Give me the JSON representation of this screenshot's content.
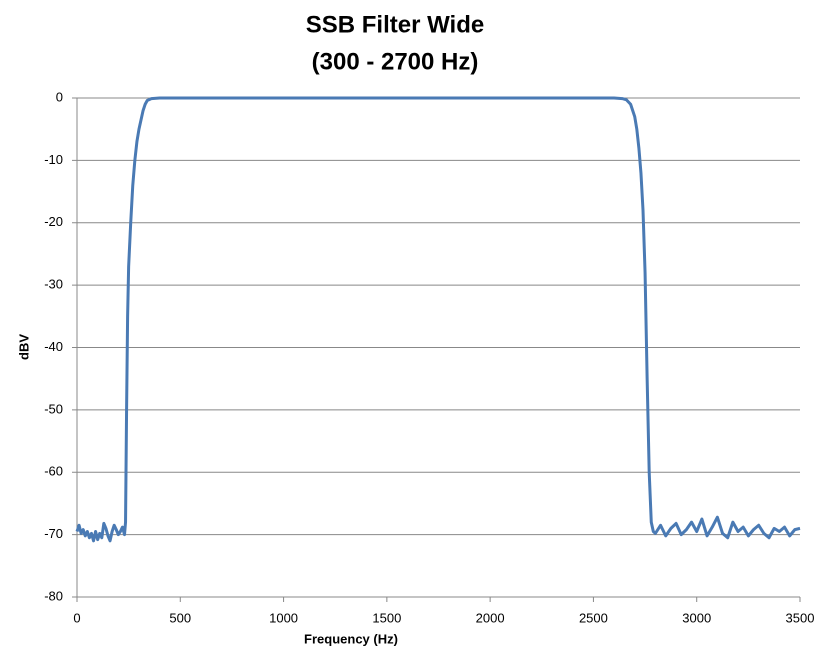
{
  "chart_data": {
    "type": "line",
    "title": [
      "SSB Filter Wide",
      "(300 - 2700 Hz)"
    ],
    "x_label": "Frequency (Hz)",
    "y_label": "dBV",
    "xlim": [
      0,
      3500
    ],
    "xticks": [
      0,
      500,
      1000,
      1500,
      2000,
      2500,
      3000,
      3500
    ],
    "ylim": [
      -80,
      0
    ],
    "yticks": [
      0,
      -10,
      -20,
      -30,
      -40,
      -50,
      -60,
      -70,
      -80
    ],
    "grid": true,
    "series": [
      {
        "color": "#4a7ab4",
        "x": [
          0,
          10,
          20,
          30,
          40,
          50,
          60,
          70,
          80,
          90,
          100,
          110,
          120,
          130,
          140,
          150,
          160,
          170,
          180,
          190,
          200,
          210,
          220,
          230,
          235,
          240,
          245,
          250,
          260,
          270,
          280,
          290,
          300,
          310,
          320,
          330,
          340,
          360,
          400,
          1000,
          1500,
          2000,
          2600,
          2640,
          2660,
          2680,
          2700,
          2710,
          2720,
          2730,
          2740,
          2750,
          2760,
          2770,
          2780,
          2790,
          2800,
          2825,
          2850,
          2875,
          2900,
          2925,
          2950,
          2975,
          3000,
          3025,
          3050,
          3075,
          3100,
          3125,
          3150,
          3175,
          3200,
          3225,
          3250,
          3275,
          3300,
          3325,
          3350,
          3375,
          3400,
          3425,
          3450,
          3475,
          3500
        ],
        "values": [
          -69.5,
          -68.5,
          -69.8,
          -69.2,
          -70.2,
          -69.5,
          -70.5,
          -69.8,
          -71,
          -69.5,
          -70.8,
          -69.8,
          -70.5,
          -68.2,
          -69,
          -70.2,
          -71,
          -69.5,
          -68.5,
          -69.2,
          -70,
          -69.5,
          -68.8,
          -70,
          -68,
          -50,
          -35,
          -27,
          -20,
          -14,
          -10,
          -7,
          -5,
          -3.5,
          -2,
          -1,
          -0.4,
          -0.1,
          0,
          0,
          0,
          0,
          0,
          -0.1,
          -0.3,
          -1,
          -3,
          -5,
          -8,
          -12,
          -18,
          -28,
          -45,
          -60,
          -68,
          -69.5,
          -69.8,
          -68.5,
          -70.2,
          -69,
          -68.2,
          -70,
          -69.2,
          -68,
          -69.5,
          -67.5,
          -70.2,
          -68.8,
          -67.2,
          -69.8,
          -70.5,
          -68,
          -69.5,
          -68.8,
          -70.2,
          -69.2,
          -68.5,
          -69.8,
          -70.5,
          -69,
          -69.5,
          -68.8,
          -70.2,
          -69.2,
          -69
        ]
      }
    ]
  }
}
